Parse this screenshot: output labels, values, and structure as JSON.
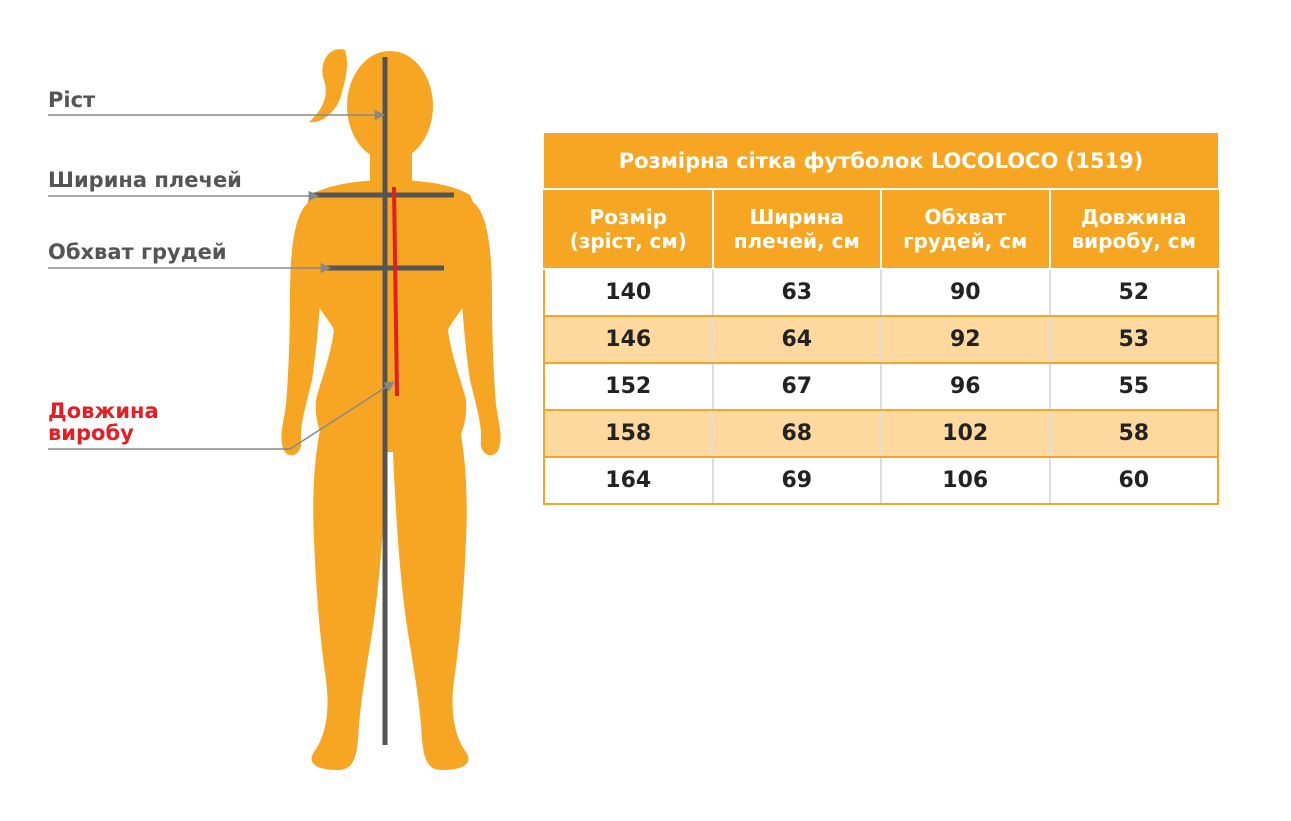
{
  "colors": {
    "accent": "#f6a623",
    "shade": "#fdd9a0",
    "highlight": "#e31e24",
    "text": "#555555",
    "guide": "#555555"
  },
  "labels": {
    "height": "Ріст",
    "shoulder_width": "Ширина плечей",
    "chest": "Обхват грудей",
    "length_line1": "Довжина",
    "length_line2": "виробу"
  },
  "table": {
    "title": "Розмірна сітка футболок LOCOLOCO (1519)",
    "headers": [
      {
        "line1": "Розмір",
        "line2": "(зріст, см)"
      },
      {
        "line1": "Ширина",
        "line2": "плечей, см"
      },
      {
        "line1": "Обхват",
        "line2": "грудей, см"
      },
      {
        "line1": "Довжина",
        "line2": "виробу, см"
      }
    ],
    "rows": [
      [
        "140",
        "63",
        "90",
        "52"
      ],
      [
        "146",
        "64",
        "92",
        "53"
      ],
      [
        "152",
        "67",
        "96",
        "55"
      ],
      [
        "158",
        "68",
        "102",
        "58"
      ],
      [
        "164",
        "69",
        "106",
        "60"
      ]
    ]
  }
}
